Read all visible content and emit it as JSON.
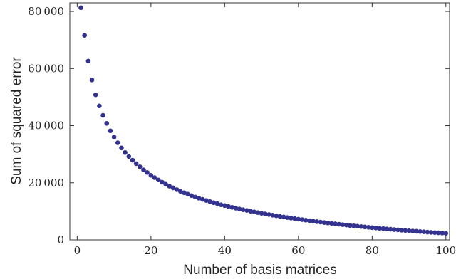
{
  "chart_data": {
    "type": "scatter",
    "title": "",
    "xlabel": "Number of basis matrices",
    "ylabel": "Sum of squared error",
    "xlim": [
      -2,
      101
    ],
    "ylim": [
      0,
      83000
    ],
    "xticks": [
      0,
      20,
      40,
      60,
      80,
      100
    ],
    "xtick_labels": [
      "0",
      "20",
      "40",
      "60",
      "80",
      "100"
    ],
    "yticks": [
      0,
      20000,
      40000,
      60000,
      80000
    ],
    "ytick_labels": [
      "0",
      "20 000",
      "40 000",
      "60 000",
      "80 000"
    ],
    "grid": false,
    "legend": "none",
    "marker_color": "#33338f",
    "series": [
      {
        "x": [
          1,
          2,
          3,
          4,
          5,
          6,
          7,
          8,
          9,
          10,
          11,
          12,
          13,
          14,
          15,
          16,
          17,
          18,
          19,
          20,
          21,
          22,
          23,
          24,
          25,
          26,
          27,
          28,
          29,
          30,
          31,
          32,
          33,
          34,
          35,
          36,
          37,
          38,
          39,
          40,
          41,
          42,
          43,
          44,
          45,
          46,
          47,
          48,
          49,
          50,
          51,
          52,
          53,
          54,
          55,
          56,
          57,
          58,
          59,
          60,
          61,
          62,
          63,
          64,
          65,
          66,
          67,
          68,
          69,
          70,
          71,
          72,
          73,
          74,
          75,
          76,
          77,
          78,
          79,
          80,
          81,
          82,
          83,
          84,
          85,
          86,
          87,
          88,
          89,
          90,
          91,
          92,
          93,
          94,
          95,
          96,
          97,
          98,
          99,
          100
        ],
        "y": [
          81300,
          71600,
          62600,
          56000,
          50800,
          46900,
          43600,
          40800,
          38200,
          36000,
          34000,
          32200,
          30600,
          29200,
          27900,
          26700,
          25600,
          24500,
          23600,
          22600,
          21800,
          21000,
          20200,
          19500,
          18800,
          18200,
          17600,
          17000,
          16500,
          16000,
          15500,
          15000,
          14600,
          14200,
          13800,
          13400,
          13000,
          12700,
          12300,
          12000,
          11700,
          11400,
          11100,
          10800,
          10550,
          10300,
          10050,
          9800,
          9550,
          9300,
          9080,
          8860,
          8640,
          8430,
          8220,
          8020,
          7820,
          7630,
          7440,
          7260,
          7080,
          6900,
          6730,
          6560,
          6390,
          6230,
          6070,
          5920,
          5770,
          5620,
          5470,
          5330,
          5190,
          5050,
          4920,
          4790,
          4660,
          4530,
          4410,
          4290,
          4170,
          4050,
          3940,
          3830,
          3720,
          3610,
          3500,
          3400,
          3300,
          3200,
          3100,
          3000,
          2910,
          2820,
          2730,
          2640,
          2550,
          2470,
          2390,
          2300
        ]
      }
    ]
  }
}
